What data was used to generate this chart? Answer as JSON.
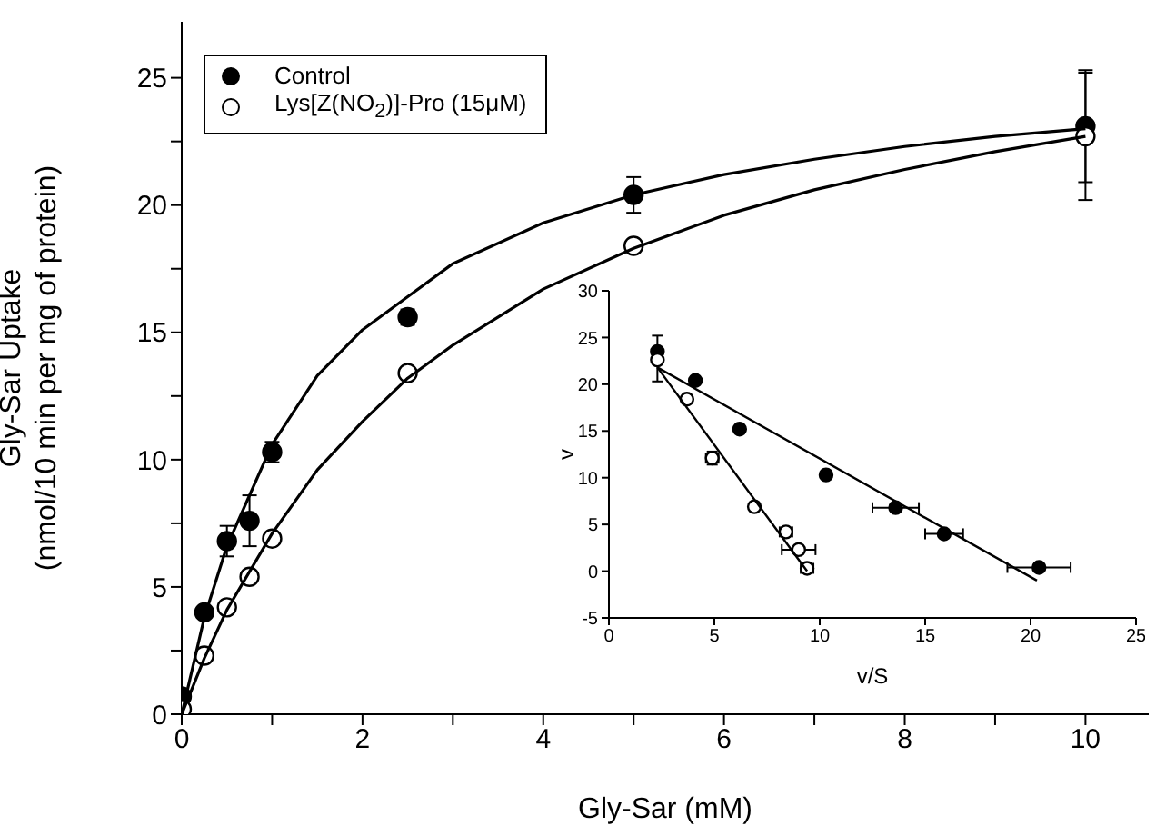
{
  "chart_data": [
    {
      "type": "scatter",
      "xlabel": "Gly-Sar (mM)",
      "ylabel": "Gly-Sar Uptake\n(nmol/10 min per mg of protein)",
      "xlim": [
        0,
        10.7
      ],
      "ylim": [
        0,
        27.2
      ],
      "xticks": [
        0,
        {
          "value": 1,
          "label": null
        },
        2,
        {
          "value": 3,
          "label": null
        },
        4,
        {
          "value": 5,
          "label": null
        },
        6,
        {
          "value": 7,
          "label": null
        },
        8,
        {
          "value": 9,
          "label": null
        },
        10
      ],
      "yticks": [
        0,
        {
          "value": 2.5,
          "label": null
        },
        5,
        {
          "value": 7.5,
          "label": null
        },
        10,
        {
          "value": 12.5,
          "label": null
        },
        15,
        {
          "value": 17.5,
          "label": null
        },
        20,
        {
          "value": 22.5,
          "label": null
        },
        25
      ],
      "legend": "top left",
      "marker": "circle",
      "series": [
        {
          "name": "Control",
          "color": "#000000",
          "x": [
            0,
            0.25,
            0.5,
            0.75,
            1,
            2.5,
            5,
            10
          ],
          "values": [
            0.7,
            4.0,
            6.8,
            7.6,
            10.3,
            15.6,
            20.4,
            23.1
          ],
          "errors": [
            null,
            null,
            0.6,
            1.0,
            0.4,
            0.3,
            0.7,
            2.2
          ]
        },
        {
          "name": "Lys[Z(NO$_{2}$)]-Pro (15μM)",
          "color": "#000000",
          "x": [
            0,
            0.25,
            0.5,
            0.75,
            1,
            2.5,
            5,
            10
          ],
          "values": [
            0.2,
            2.3,
            4.2,
            5.4,
            6.9,
            13.4,
            18.4,
            22.7
          ],
          "errors": [
            null,
            null,
            null,
            null,
            null,
            null,
            null,
            2.5
          ]
        },
        {
          "type": "line",
          "color": "#000000",
          "marker": "none",
          "x": [
            0,
            0.25,
            0.5,
            1,
            1.5,
            2,
            2.5,
            3,
            4,
            5,
            6,
            7,
            8,
            9,
            10
          ],
          "values": [
            0,
            3.8,
            6.6,
            10.6,
            13.3,
            15.1,
            16.4,
            17.7,
            19.3,
            20.4,
            21.2,
            21.8,
            22.3,
            22.7,
            23.0
          ]
        },
        {
          "type": "line",
          "color": "#000000",
          "marker": "none",
          "x": [
            0,
            0.25,
            0.5,
            1,
            1.5,
            2,
            2.5,
            3,
            4,
            5,
            6,
            7,
            8,
            9,
            10
          ],
          "values": [
            0,
            2.2,
            4.1,
            7.1,
            9.6,
            11.5,
            13.2,
            14.5,
            16.7,
            18.3,
            19.6,
            20.6,
            21.4,
            22.1,
            22.7
          ]
        }
      ]
    },
    {
      "type": "scatter",
      "xlabel": "v/S",
      "ylabel": "v",
      "xlim": [
        0,
        25
      ],
      "ylim": [
        -5,
        30
      ],
      "xticks": [
        0,
        5,
        10,
        15,
        20,
        25
      ],
      "yticks": [
        -5,
        0,
        5,
        10,
        15,
        20,
        25,
        30
      ],
      "marker": "circle",
      "series": [
        {
          "color": "#000000",
          "x": [
            2.3,
            4.1,
            6.2,
            10.3,
            13.6,
            15.9,
            20.4
          ],
          "values": [
            23.5,
            20.4,
            15.2,
            10.3,
            6.8,
            4.0,
            0.4
          ],
          "xerrors": [
            null,
            null,
            null,
            null,
            1.1,
            0.9,
            1.5
          ]
        },
        {
          "color": "#000000",
          "x": [
            2.3,
            3.7,
            4.9,
            6.9,
            8.4,
            9.0,
            9.4
          ],
          "values": [
            22.6,
            18.4,
            12.1,
            6.9,
            4.2,
            2.3,
            0.3
          ],
          "errors": [
            [
              20.3,
              25.2
            ],
            null,
            0.7,
            null,
            null,
            null,
            null
          ],
          "xerrors": [
            null,
            null,
            0.3,
            null,
            0.3,
            0.8,
            0.3
          ]
        },
        {
          "type": "line",
          "color": "#000000",
          "marker": "none",
          "x": [
            2.3,
            20.3
          ],
          "values": [
            21.8,
            -1.0
          ]
        },
        {
          "type": "line",
          "color": "#000000",
          "marker": "none",
          "x": [
            2.3,
            9.4
          ],
          "values": [
            21.8,
            0
          ]
        }
      ]
    }
  ]
}
